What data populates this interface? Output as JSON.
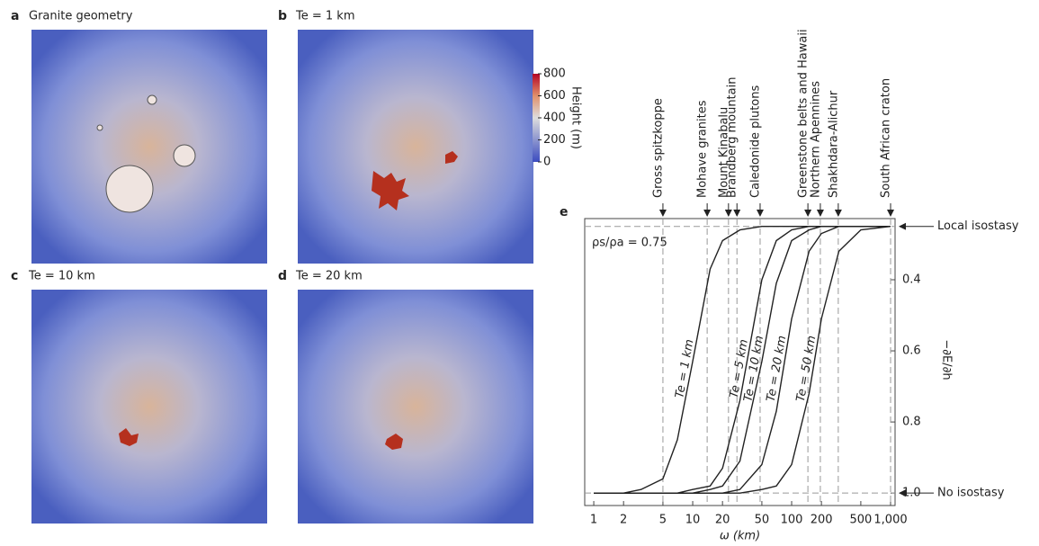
{
  "panels": [
    {
      "letter": "a",
      "title": "Granite geometry"
    },
    {
      "letter": "b",
      "title": "Te = 1 km"
    },
    {
      "letter": "c",
      "title": "Te = 10 km"
    },
    {
      "letter": "d",
      "title": "Te = 20 km"
    }
  ],
  "colorbar": {
    "label": "Height (m)",
    "lim": [
      0,
      800
    ],
    "ticks": [
      800,
      600,
      400,
      200,
      0
    ]
  },
  "chart_data": {
    "type": "line",
    "panel": "e",
    "xlabel": "ω (km)",
    "ylabel": "−∂E/∂h",
    "annotation": "ρs/ρa = 0.75",
    "xlog": true,
    "yinvert": true,
    "xlim": [
      0.81,
      1110
    ],
    "ylim": [
      0.228,
      1.035
    ],
    "xticks": [
      1,
      2,
      5,
      10,
      20,
      50,
      100,
      200,
      500,
      {
        "value": 1000,
        "label": "1,000"
      }
    ],
    "yticks": [
      0.4,
      0.6,
      0.8,
      {
        "value": 1,
        "label": "1.0"
      }
    ],
    "x": [
      1,
      2,
      3,
      5,
      7,
      10,
      15,
      20,
      30,
      50,
      70,
      100,
      150,
      200,
      300,
      500,
      1000
    ],
    "series": [
      {
        "name": "Te = 1 km",
        "color": "#222222",
        "values": [
          1,
          1,
          0.99,
          0.96,
          0.85,
          0.63,
          0.37,
          0.29,
          0.26,
          0.25,
          0.25,
          0.25,
          0.25,
          0.25,
          0.25,
          0.25,
          0.25
        ]
      },
      {
        "name": "Te = 5 km",
        "color": "#222222",
        "values": [
          1,
          1,
          1,
          1,
          1,
          0.99,
          0.98,
          0.93,
          0.74,
          0.4,
          0.29,
          0.26,
          0.25,
          0.25,
          0.25,
          0.25,
          0.25
        ]
      },
      {
        "name": "Te = 10 km",
        "color": "#222222",
        "values": [
          1,
          1,
          1,
          1,
          1,
          1,
          0.99,
          0.98,
          0.91,
          0.63,
          0.41,
          0.29,
          0.26,
          0.25,
          0.25,
          0.25,
          0.25
        ]
      },
      {
        "name": "Te = 20 km",
        "color": "#222222",
        "values": [
          1,
          1,
          1,
          1,
          1,
          1,
          1,
          1,
          0.99,
          0.92,
          0.77,
          0.51,
          0.32,
          0.27,
          0.25,
          0.25,
          0.25
        ]
      },
      {
        "name": "Te = 50 km",
        "color": "#222222",
        "values": [
          1,
          1,
          1,
          1,
          1,
          1,
          1,
          1,
          1,
          0.99,
          0.98,
          0.92,
          0.72,
          0.51,
          0.32,
          0.26,
          0.25
        ]
      }
    ],
    "markers": [
      {
        "label": "Gross spitzkoppe",
        "x": 5
      },
      {
        "label": "Mohave granites",
        "x": 14
      },
      {
        "label": "Mount Kinabalu",
        "x": 23
      },
      {
        "label": "Brandberg mountain",
        "x": 28
      },
      {
        "label": "Caledonide plutons",
        "x": 48
      },
      {
        "label": "Greenstone belts and Hawaii",
        "x": 146
      },
      {
        "label": "Northern Apennines",
        "x": 195
      },
      {
        "label": "Shakhdara-Alichur",
        "x": 296
      },
      {
        "label": "South African craton",
        "x": 1000
      }
    ],
    "reference_lines": [
      {
        "label": "Local isostasy",
        "y": 0.25
      },
      {
        "label": "No isostasy",
        "y": 1
      }
    ]
  }
}
